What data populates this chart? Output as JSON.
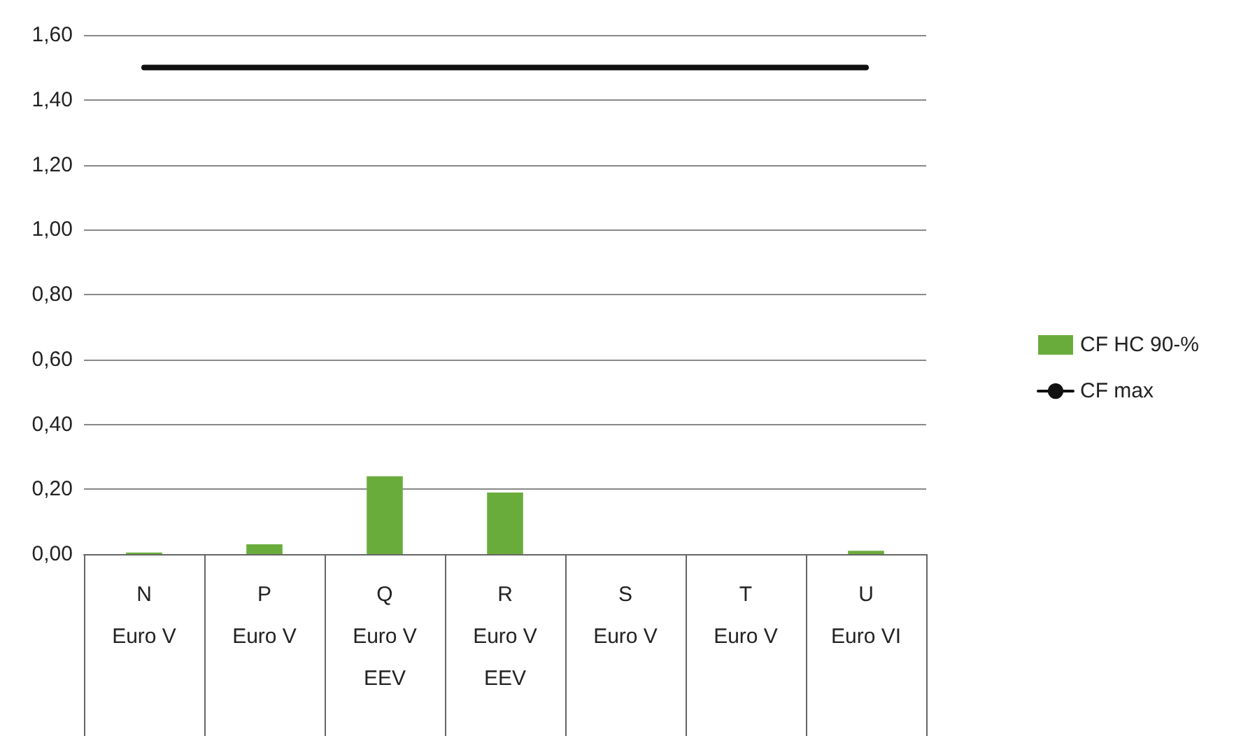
{
  "chart_data": {
    "type": "bar",
    "categories": [
      "N\nEuro V",
      "P\nEuro V",
      "Q\nEuro V\nEEV",
      "R\nEuro V\nEEV",
      "S\nEuro V",
      "T\nEuro V",
      "U\nEuro VI"
    ],
    "series": [
      {
        "name": "CF HC 90-%",
        "color": "#6aac3c",
        "values": [
          0.005,
          0.03,
          0.24,
          0.19,
          0,
          0,
          0.01
        ]
      },
      {
        "name": "CF max",
        "type": "line",
        "color": "#111111",
        "values": [
          1.5,
          1.5,
          1.5,
          1.5,
          1.5,
          1.5,
          1.5
        ]
      }
    ],
    "ylim": [
      0,
      1.6
    ],
    "yticks": [
      {
        "value": 0,
        "label": "0,00"
      },
      {
        "value": 0.2,
        "label": "0,20"
      },
      {
        "value": 0.4,
        "label": "0,40"
      },
      {
        "value": 0.6,
        "label": "0,60"
      },
      {
        "value": 0.8,
        "label": "0,80"
      },
      {
        "value": 1,
        "label": "1,00"
      },
      {
        "value": 1.2,
        "label": "1,20"
      },
      {
        "value": 1.4,
        "label": "1,40"
      },
      {
        "value": 1.6,
        "label": "1,60"
      }
    ],
    "grid": "y",
    "legend": "right",
    "marker": "none"
  }
}
